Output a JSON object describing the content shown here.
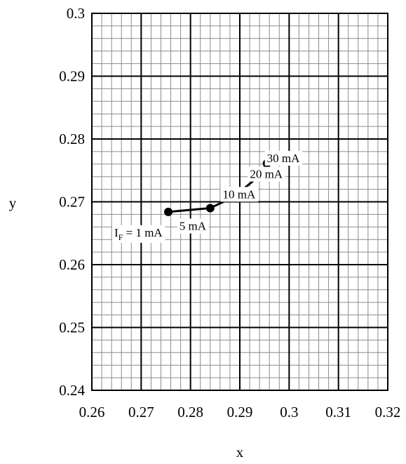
{
  "chart_data": {
    "type": "line",
    "title": "",
    "xlabel": "x",
    "ylabel": "y",
    "xlim": [
      0.26,
      0.32
    ],
    "ylim": [
      0.24,
      0.3
    ],
    "x_major_step": 0.01,
    "y_major_step": 0.01,
    "minor_divisions": 5,
    "grid": "major and minor",
    "x_tick_labels": [
      "0.26",
      "0.27",
      "0.28",
      "0.29",
      "0.3",
      "0.31",
      "0.32"
    ],
    "y_tick_labels": [
      "0.24",
      "0.25",
      "0.26",
      "0.27",
      "0.28",
      "0.29",
      "0.3"
    ],
    "series": [
      {
        "color": "#000000",
        "marker": "circle",
        "x": [
          0.2755,
          0.284,
          0.2888,
          0.2936,
          0.2955
        ],
        "y": [
          0.2684,
          0.269,
          0.2708,
          0.2739,
          0.2761
        ],
        "point_labels": [
          {
            "main": "I",
            "sub": "F",
            "rest": " = 1 mA"
          },
          {
            "main": "5 mA",
            "sub": "",
            "rest": ""
          },
          {
            "main": "10 mA",
            "sub": "",
            "rest": ""
          },
          {
            "main": "20 mA",
            "sub": "",
            "rest": ""
          },
          {
            "main": "30 mA",
            "sub": "",
            "rest": ""
          }
        ]
      }
    ]
  }
}
